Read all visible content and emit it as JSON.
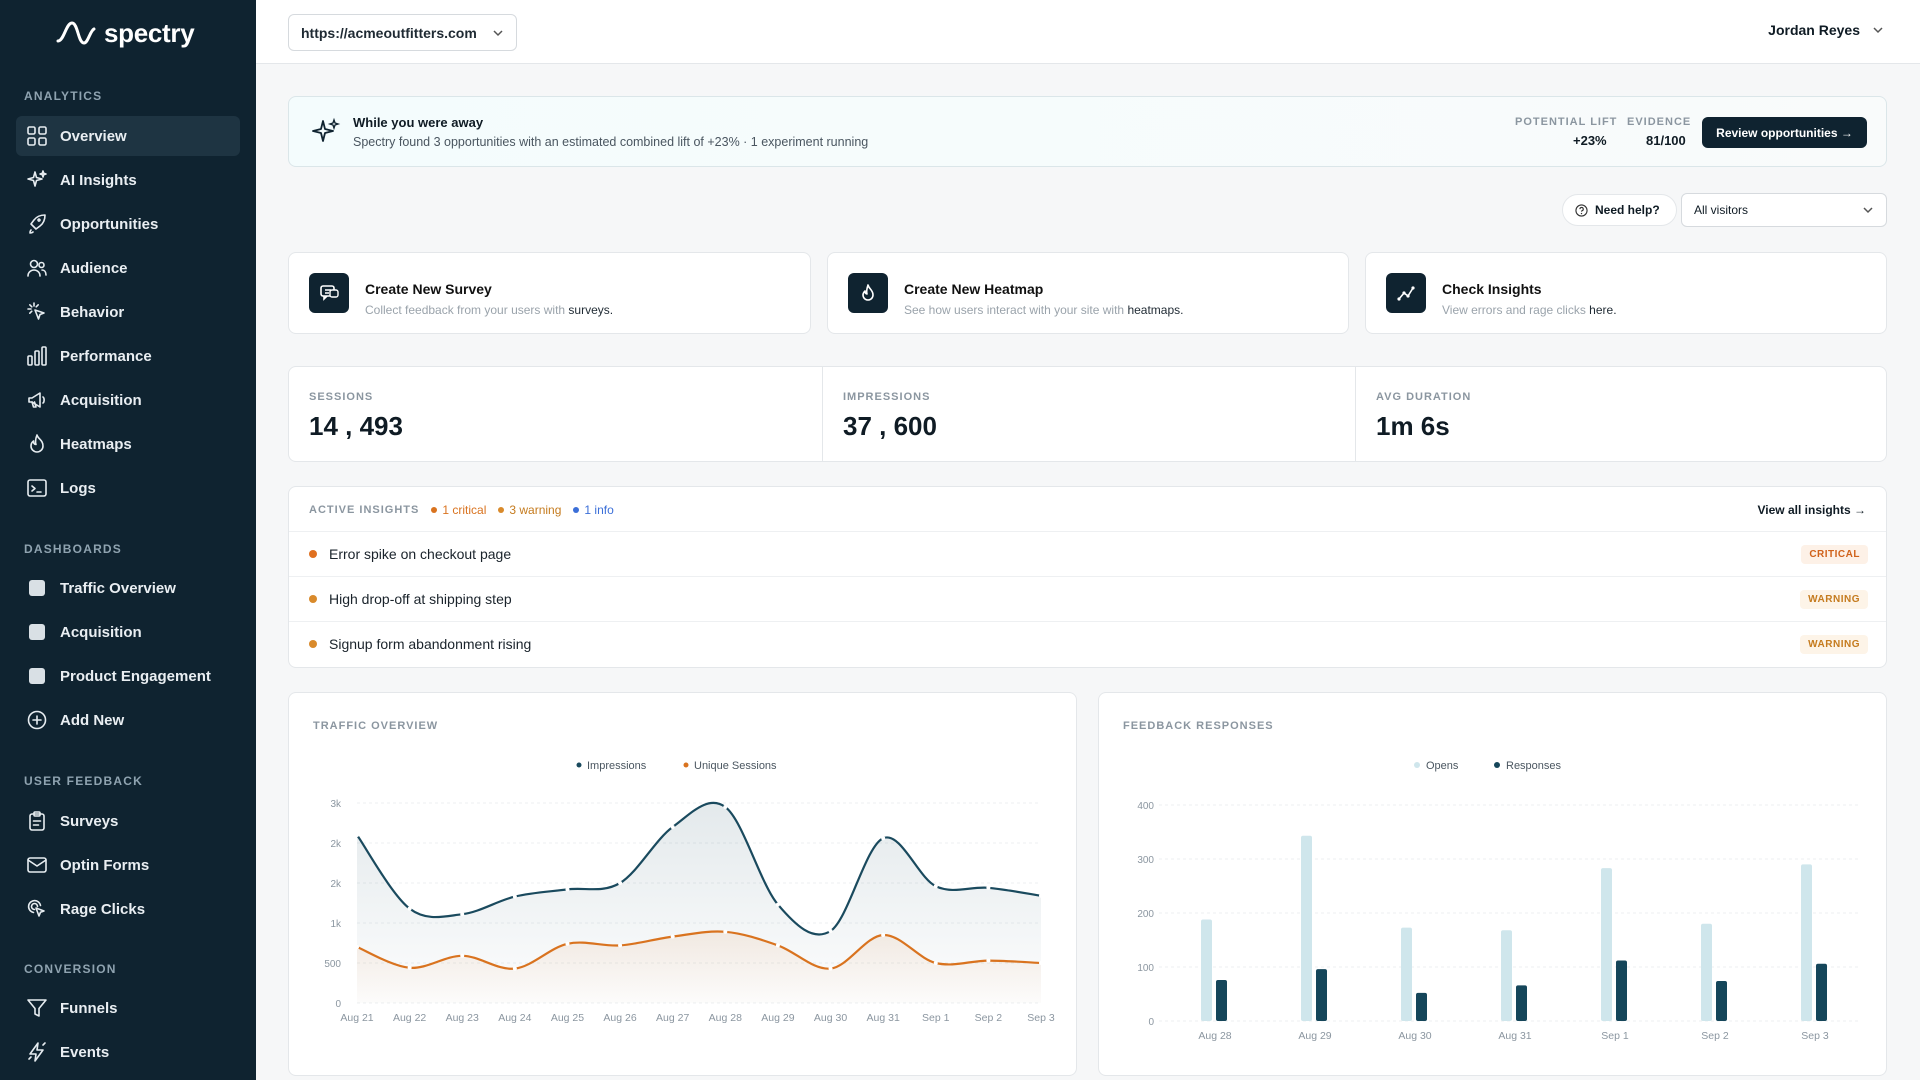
{
  "brand": {
    "name": "spectry"
  },
  "sidebar": {
    "sections": {
      "analytics": "ANALYTICS",
      "dashboards": "DASHBOARDS",
      "user_feedback": "USER FEEDBACK",
      "conversion": "CONVERSION"
    },
    "analytics": [
      {
        "label": "Overview",
        "icon": "grid-icon"
      },
      {
        "label": "AI Insights",
        "icon": "sparkle-icon"
      },
      {
        "label": "Opportunities",
        "icon": "rocket-icon"
      },
      {
        "label": "Audience",
        "icon": "users-icon"
      },
      {
        "label": "Behavior",
        "icon": "cursor-click-icon"
      },
      {
        "label": "Performance",
        "icon": "bar-chart-icon"
      },
      {
        "label": "Acquisition",
        "icon": "megaphone-icon"
      },
      {
        "label": "Heatmaps",
        "icon": "flame-icon"
      },
      {
        "label": "Logs",
        "icon": "terminal-icon"
      }
    ],
    "dashboards": [
      {
        "label": "Traffic Overview"
      },
      {
        "label": "Acquisition"
      },
      {
        "label": "Product Engagement"
      },
      {
        "label": "Add New",
        "icon": "plus-circle-icon"
      }
    ],
    "user_feedback": [
      {
        "label": "Surveys",
        "icon": "clipboard-icon"
      },
      {
        "label": "Optin Forms",
        "icon": "mail-icon"
      },
      {
        "label": "Rage Clicks",
        "icon": "rage-click-icon"
      }
    ],
    "conversion": [
      {
        "label": "Funnels",
        "icon": "funnel-icon"
      },
      {
        "label": "Events",
        "icon": "bolt-icon"
      }
    ]
  },
  "topbar": {
    "site_url": "https://acmeoutfitters.com",
    "user_name": "Jordan Reyes"
  },
  "banner": {
    "title": "While you were away",
    "text": "Spectry found 3 opportunities with an estimated combined lift of +23% · 1 experiment running",
    "lift_label": "POTENTIAL LIFT",
    "lift_value": "+23%",
    "evidence_label": "EVIDENCE",
    "evidence_value": "81/100",
    "cta": "Review opportunities →"
  },
  "filters": {
    "help": "Need help?",
    "audience": "All visitors"
  },
  "quick_actions": [
    {
      "title": "Create New Survey",
      "desc": "Collect feedback from your users with ",
      "link": "surveys."
    },
    {
      "title": "Create New Heatmap",
      "desc": "See how users interact with your site with ",
      "link": "heatmaps."
    },
    {
      "title": "Check Insights",
      "desc": "View errors and rage clicks ",
      "link": "here."
    }
  ],
  "stats": [
    {
      "label": "SESSIONS",
      "value": "14 , 493"
    },
    {
      "label": "IMPRESSIONS",
      "value": "37 , 600"
    },
    {
      "label": "AVG DURATION",
      "value": "1m 6s"
    }
  ],
  "insights": {
    "label": "ACTIVE INSIGHTS",
    "critical": "1 critical",
    "warning": "3 warning",
    "info": "1 info",
    "view_all": "View all insights →",
    "items": [
      {
        "title": "Error spike on checkout page",
        "badge": "CRITICAL"
      },
      {
        "title": "High drop-off at shipping step",
        "badge": "WARNING"
      },
      {
        "title": "Signup form abandonment rising",
        "badge": "WARNING"
      }
    ]
  },
  "colors": {
    "critical": "#e07020",
    "warning": "#d98a2b",
    "info": "#3b6fd8",
    "impressions": "#1a4a5e",
    "sessions": "#d9731f",
    "opens": "#cfe6ec",
    "responses": "#15465a"
  },
  "chart_data": [
    {
      "type": "line",
      "title": "TRAFFIC OVERVIEW",
      "categories": [
        "Aug 21",
        "Aug 22",
        "Aug 23",
        "Aug 24",
        "Aug 25",
        "Aug 26",
        "Aug 27",
        "Aug 28",
        "Aug 29",
        "Aug 30",
        "Aug 31",
        "Sep 1",
        "Sep 2",
        "Sep 3"
      ],
      "yticks": [
        "0",
        "500",
        "1k",
        "2k",
        "2k",
        "3k"
      ],
      "ylim": [
        0,
        2500
      ],
      "series": [
        {
          "name": "Impressions",
          "values": [
            2100,
            1180,
            1110,
            1330,
            1420,
            1500,
            2200,
            2450,
            1230,
            900,
            2060,
            1460,
            1440,
            1340
          ]
        },
        {
          "name": "Unique Sessions",
          "values": [
            700,
            440,
            590,
            430,
            740,
            720,
            830,
            890,
            720,
            430,
            850,
            500,
            530,
            500
          ]
        }
      ]
    },
    {
      "type": "bar",
      "title": "FEEDBACK RESPONSES",
      "categories": [
        "Aug 28",
        "Aug 29",
        "Aug 30",
        "Aug 31",
        "Sep 1",
        "Sep 2",
        "Sep 3"
      ],
      "yticks": [
        "0",
        "100",
        "200",
        "300",
        "400"
      ],
      "ylim": [
        0,
        400
      ],
      "series": [
        {
          "name": "Opens",
          "values": [
            188,
            343,
            173,
            168,
            283,
            180,
            290
          ]
        },
        {
          "name": "Responses",
          "values": [
            76,
            96,
            52,
            66,
            112,
            74,
            106
          ]
        }
      ]
    }
  ]
}
